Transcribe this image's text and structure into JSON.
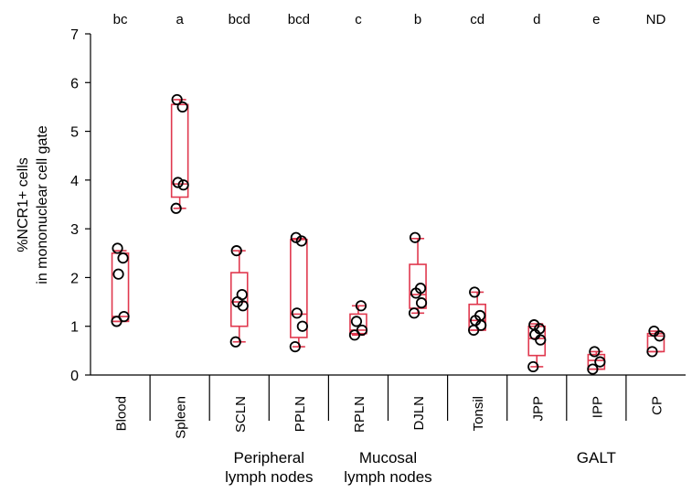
{
  "chart_data": {
    "type": "box",
    "ylabel_line1": "%NCR1+ cells",
    "ylabel_line2": "in mononuclear cell gate",
    "ylim": [
      0,
      7
    ],
    "yticks": [
      0,
      1,
      2,
      3,
      4,
      5,
      6,
      7
    ],
    "grid": false,
    "legend": "none",
    "box_color": "#e0384e",
    "point_color": "#000000",
    "categories": [
      "Blood",
      "Spleen",
      "SCLN",
      "PPLN",
      "RPLN",
      "DJLN",
      "Tonsil",
      "JPP",
      "IPP",
      "CP"
    ],
    "significance": [
      "bc",
      "a",
      "bcd",
      "bcd",
      "c",
      "b",
      "cd",
      "d",
      "e",
      "ND"
    ],
    "boxes": [
      {
        "whisker_low": 1.1,
        "q1": 1.1,
        "median": 1.2,
        "q3": 2.5,
        "whisker_high": 2.55
      },
      {
        "whisker_low": 3.42,
        "q1": 3.65,
        "median": 3.92,
        "q3": 5.55,
        "whisker_high": 5.65
      },
      {
        "whisker_low": 0.68,
        "q1": 1.0,
        "median": 1.5,
        "q3": 2.1,
        "whisker_high": 2.55
      },
      {
        "whisker_low": 0.58,
        "q1": 0.77,
        "median": 1.25,
        "q3": 2.78,
        "whisker_high": 2.8
      },
      {
        "whisker_low": 0.82,
        "q1": 0.85,
        "median": 0.92,
        "q3": 1.25,
        "whisker_high": 1.42
      },
      {
        "whisker_low": 1.27,
        "q1": 1.37,
        "median": 1.65,
        "q3": 2.27,
        "whisker_high": 2.8
      },
      {
        "whisker_low": 0.92,
        "q1": 0.92,
        "median": 1.12,
        "q3": 1.45,
        "whisker_high": 1.7
      },
      {
        "whisker_low": 0.17,
        "q1": 0.4,
        "median": 0.75,
        "q3": 1.0,
        "whisker_high": 1.05
      },
      {
        "whisker_low": 0.12,
        "q1": 0.12,
        "median": 0.3,
        "q3": 0.42,
        "whisker_high": 0.48
      },
      {
        "whisker_low": 0.48,
        "q1": 0.48,
        "median": 0.8,
        "q3": 0.85,
        "whisker_high": 0.9
      }
    ],
    "points": [
      [
        1.1,
        1.2,
        2.07,
        2.4,
        2.6
      ],
      [
        3.42,
        3.9,
        3.95,
        5.5,
        5.65
      ],
      [
        0.68,
        1.42,
        1.5,
        1.65,
        2.55
      ],
      [
        0.58,
        1.0,
        1.27,
        2.75,
        2.82
      ],
      [
        0.82,
        0.92,
        1.1,
        1.42
      ],
      [
        1.27,
        1.48,
        1.68,
        1.78,
        2.82
      ],
      [
        0.92,
        1.02,
        1.12,
        1.22,
        1.7
      ],
      [
        0.17,
        0.72,
        0.83,
        0.95,
        1.03
      ],
      [
        0.12,
        0.27,
        0.48
      ],
      [
        0.48,
        0.8,
        0.9
      ]
    ],
    "groups": [
      {
        "line1": "Peripheral",
        "line2": "lymph nodes",
        "span": [
          2,
          3
        ]
      },
      {
        "line1": "Mucosal",
        "line2": "lymph nodes",
        "span": [
          4,
          5
        ]
      },
      {
        "line1": "GALT",
        "line2": "",
        "span": [
          7,
          9
        ]
      }
    ]
  }
}
